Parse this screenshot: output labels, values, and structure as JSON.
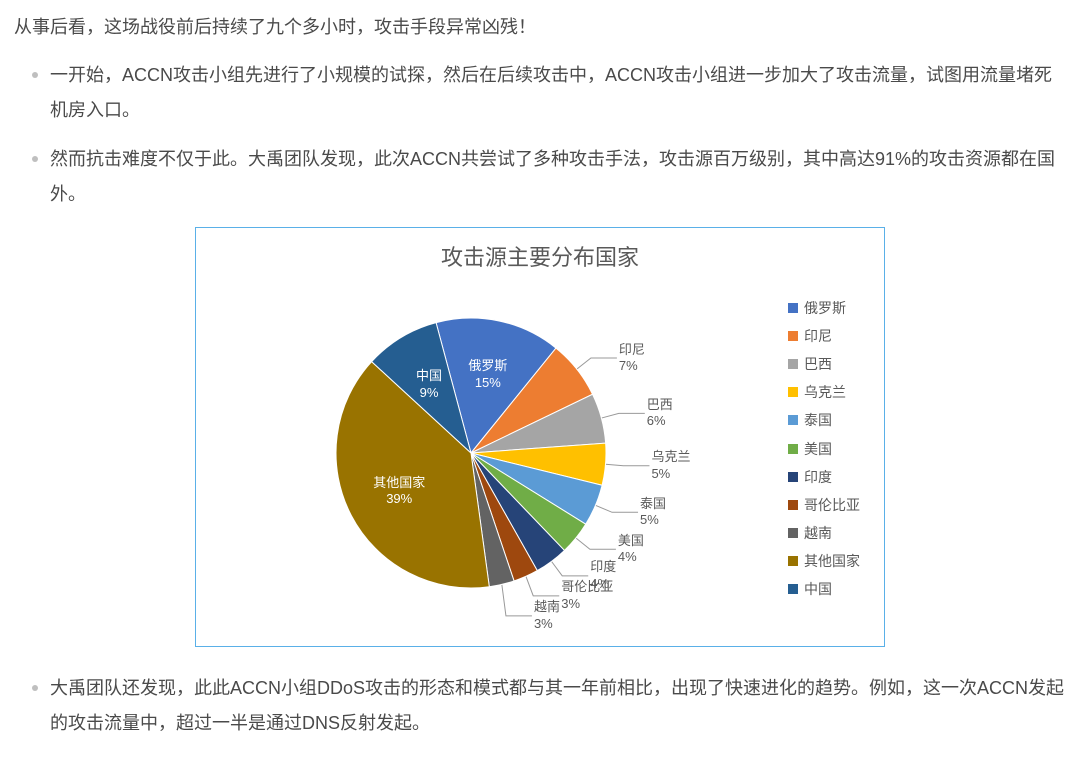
{
  "intro": "从事后看，这场战役前后持续了九个多小时，攻击手段异常凶残！",
  "bullets": [
    "一开始，ACCN攻击小组先进行了小规模的试探，然后在后续攻击中，ACCN攻击小组进一步加大了攻击流量，试图用流量堵死机房入口。",
    "然而抗击难度不仅于此。大禹团队发现，此次ACCN共尝试了多种攻击手法，攻击源百万级别，其中高达91%的攻击资源都在国外。"
  ],
  "after_bullet": "大禹团队还发现，此此ACCN小组DDoS攻击的形态和模式都与其一年前相比，出现了快速进化的趋势。例如，这一次ACCN发起的攻击流量中，超过一半是通过DNS反射发起。",
  "chart": {
    "type": "pie",
    "title": "攻击源主要分布国家",
    "title_fontsize": 22,
    "title_color": "#595959",
    "border_color": "#5ab0e8",
    "background_color": "#ffffff",
    "label_fontsize": 13,
    "label_color": "#595959",
    "legend_fontsize": 14,
    "pie_radius": 135,
    "start_angle_deg": -105,
    "slices": [
      {
        "label": "俄罗斯",
        "value": 15,
        "color": "#4472c4",
        "inside": true
      },
      {
        "label": "印尼",
        "value": 7,
        "color": "#ed7d31",
        "inside": false
      },
      {
        "label": "巴西",
        "value": 6,
        "color": "#a5a5a5",
        "inside": false
      },
      {
        "label": "乌克兰",
        "value": 5,
        "color": "#ffc000",
        "inside": false
      },
      {
        "label": "泰国",
        "value": 5,
        "color": "#5b9bd5",
        "inside": false
      },
      {
        "label": "美国",
        "value": 4,
        "color": "#70ad47",
        "inside": false
      },
      {
        "label": "印度",
        "value": 4,
        "color": "#264478",
        "inside": false
      },
      {
        "label": "哥伦比亚",
        "value": 3,
        "color": "#9e480e",
        "inside": false
      },
      {
        "label": "越南",
        "value": 3,
        "color": "#636363",
        "inside": false
      },
      {
        "label": "其他国家",
        "value": 39,
        "color": "#997300",
        "inside": true
      },
      {
        "label": "中国",
        "value": 9,
        "color": "#255e91",
        "inside": true
      }
    ]
  }
}
